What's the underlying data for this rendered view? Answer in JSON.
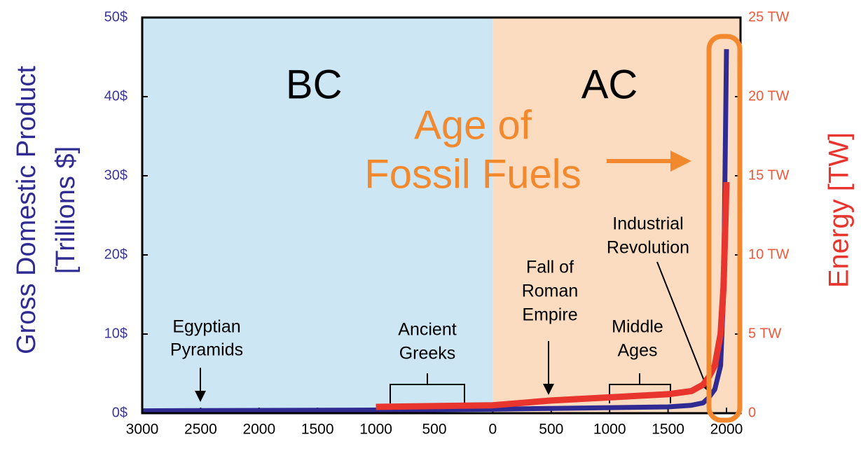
{
  "chart_data": {
    "type": "line",
    "y_label_lines": [
      "Gross Domestic Product",
      "[Trillions $]"
    ],
    "y2_label": "Energy [TW]",
    "xlim": [
      -3000,
      2120
    ],
    "xticks": [
      {
        "value": -3000,
        "label": "3000"
      },
      {
        "value": -2500,
        "label": "2500"
      },
      {
        "value": -2000,
        "label": "2000"
      },
      {
        "value": -1500,
        "label": "1500"
      },
      {
        "value": -1000,
        "label": "1000"
      },
      {
        "value": -500,
        "label": "500"
      },
      0,
      500,
      1000,
      1500,
      2000
    ],
    "ylim": [
      0,
      50
    ],
    "yticks": [
      {
        "value": 0,
        "label": "0$"
      },
      {
        "value": 10,
        "label": "10$"
      },
      {
        "value": 20,
        "label": "20$"
      },
      {
        "value": 30,
        "label": "30$"
      },
      {
        "value": 40,
        "label": "40$"
      },
      {
        "value": 50,
        "label": "50$"
      }
    ],
    "y2lim": [
      0,
      25
    ],
    "y2ticks": [
      0,
      {
        "value": 5,
        "label": "5 TW"
      },
      {
        "value": 10,
        "label": "10 TW"
      },
      {
        "value": 15,
        "label": "15 TW"
      },
      {
        "value": 20,
        "label": "20 TW"
      },
      {
        "value": 25,
        "label": "25 TW"
      }
    ],
    "regions": [
      "BC",
      "AC"
    ],
    "region_colors": [
      "#cde6f3",
      "#fcdcc0"
    ],
    "highlight_lines": [
      "Age of",
      "Fossil Fuels"
    ],
    "highlight_color": "#f2892f",
    "series": [
      {
        "name": "Gross Domestic Product",
        "color": "#302b92",
        "axis": "y",
        "x": [
          -3000,
          -1000,
          0,
          500,
          1000,
          1500,
          1700,
          1800,
          1850,
          1900,
          1950,
          1975,
          2000
        ],
        "values": [
          0.3,
          0.4,
          0.5,
          0.6,
          0.7,
          0.8,
          1,
          1.3,
          2,
          3,
          6,
          15,
          46
        ]
      },
      {
        "name": "Energy",
        "color": "#e8352e",
        "axis": "y2",
        "x": [
          -1000,
          0,
          500,
          1000,
          1500,
          1700,
          1800,
          1850,
          1900,
          1950,
          1975,
          2000
        ],
        "values": [
          0.4,
          0.5,
          0.8,
          1,
          1.2,
          1.4,
          1.8,
          2.3,
          3,
          5,
          8,
          14.6
        ]
      }
    ],
    "annotations": [
      {
        "lines": [
          "Egyptian",
          "Pyramids"
        ]
      },
      {
        "lines": [
          "Ancient",
          "Greeks"
        ]
      },
      {
        "lines": [
          "Fall of",
          "Roman",
          "Empire"
        ]
      },
      {
        "lines": [
          "Middle",
          "Ages"
        ]
      },
      {
        "lines": [
          "Industrial",
          "Revolution"
        ]
      }
    ]
  }
}
